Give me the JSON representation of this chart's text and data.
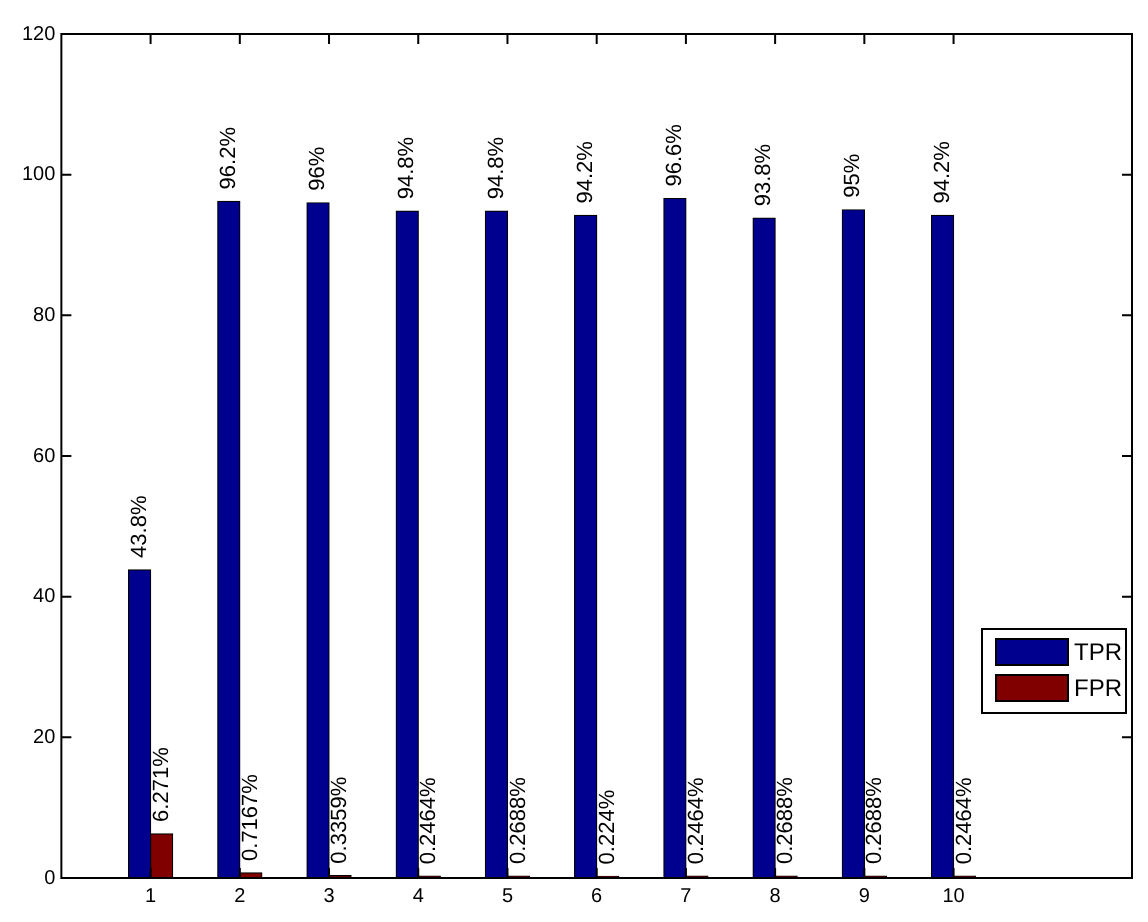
{
  "chart_data": {
    "type": "bar",
    "x": [
      1,
      2,
      3,
      4,
      5,
      6,
      7,
      8,
      9,
      10
    ],
    "series": [
      {
        "name": "TPR",
        "color": "#00008f",
        "values": [
          43.8,
          96.2,
          96,
          94.8,
          94.8,
          94.2,
          96.6,
          93.8,
          95,
          94.2
        ],
        "value_labels": [
          "43.8%",
          "96.2%",
          "96%",
          "94.8%",
          "94.8%",
          "94.2%",
          "96.6%",
          "93.8%",
          "95%",
          "94.2%"
        ]
      },
      {
        "name": "FPR",
        "color": "#800000",
        "values": [
          6.271,
          0.7167,
          0.3359,
          0.2464,
          0.2688,
          0.224,
          0.2464,
          0.2688,
          0.2688,
          0.2464
        ],
        "value_labels": [
          "6.271%",
          "0.7167%",
          "0.3359%",
          "0.2464%",
          "0.2688%",
          "0.224%",
          "0.2464%",
          "0.2688%",
          "0.2688%",
          "0.2464%"
        ]
      }
    ],
    "xlim": [
      0,
      12
    ],
    "xticks": [
      1,
      2,
      3,
      4,
      5,
      6,
      7,
      8,
      9,
      10
    ],
    "ylim": [
      0,
      120
    ],
    "yticks": [
      0,
      20,
      40,
      60,
      80,
      100,
      120
    ],
    "grid": false,
    "legend": "right"
  }
}
